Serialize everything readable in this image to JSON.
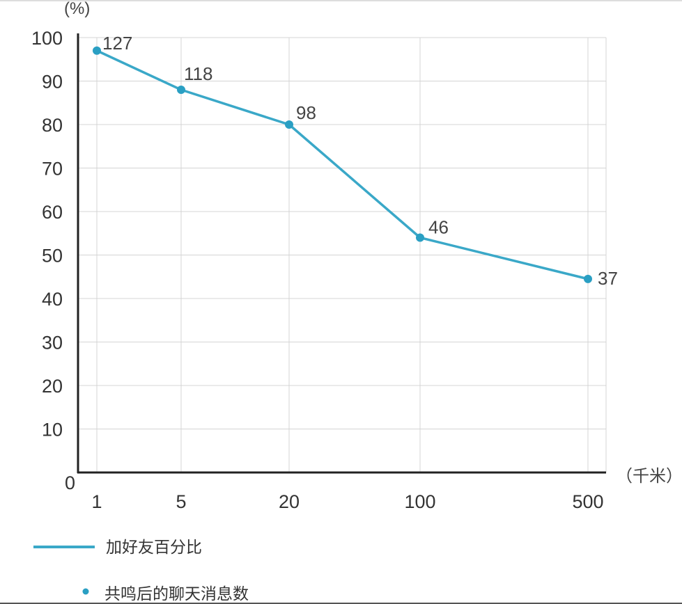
{
  "chart_data": {
    "type": "line",
    "categories": [
      "1",
      "5",
      "20",
      "100",
      "500"
    ],
    "series": [
      {
        "name": "加好友百分比",
        "values": [
          97,
          88,
          80,
          54,
          44.5
        ]
      }
    ],
    "point_labels": {
      "name": "共鸣后的聊天消息数",
      "values": [
        "127",
        "118",
        "98",
        "46",
        "37"
      ]
    },
    "y_unit": "(%)",
    "x_unit": "（千米）",
    "y_ticks": [
      "10",
      "20",
      "30",
      "40",
      "50",
      "60",
      "70",
      "80",
      "90",
      "100"
    ],
    "origin_label": "0",
    "ylim": [
      0,
      100
    ],
    "grid": true,
    "legend_position": "bottom-left",
    "colors": {
      "line": "#3aa8c8",
      "point": "#2a9fc3",
      "axis": "#222222",
      "grid": "#d4d4d4"
    }
  }
}
